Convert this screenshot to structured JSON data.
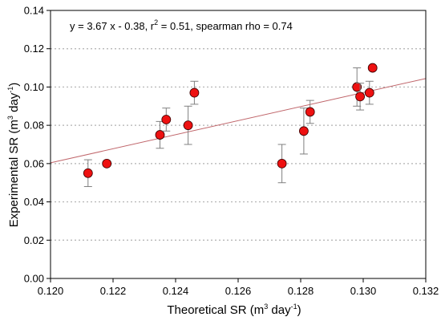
{
  "chart_data": {
    "type": "scatter",
    "annotation": {
      "before_sup": "y = 3.67 x - 0.38, r",
      "sup": "2",
      "after_sup": " = 0.51, spearman rho = 0.74"
    },
    "xlabel": {
      "pre": "Theoretical SR (m",
      "sup1": "3",
      "mid": " day",
      "sup2": "-1",
      "post": ")"
    },
    "ylabel": {
      "pre": "Experimental SR (m",
      "sup1": "3",
      "mid": " day",
      "sup2": "-1",
      "post": ")"
    },
    "xlim": [
      0.12,
      0.132
    ],
    "ylim": [
      0.0,
      0.14
    ],
    "x_ticks": [
      "0.120",
      "0.122",
      "0.124",
      "0.126",
      "0.128",
      "0.130",
      "0.132"
    ],
    "x_tick_values": [
      0.12,
      0.122,
      0.124,
      0.126,
      0.128,
      0.13,
      0.132
    ],
    "y_ticks": [
      "0.00",
      "0.02",
      "0.04",
      "0.06",
      "0.08",
      "0.10",
      "0.12",
      "0.14"
    ],
    "y_tick_values": [
      0.0,
      0.02,
      0.04,
      0.06,
      0.08,
      0.1,
      0.12,
      0.14
    ],
    "grid": "horizontal dotted",
    "regression": {
      "slope": 3.67,
      "intercept": -0.38,
      "color": "#c0666b"
    },
    "marker_color": "#ee1111",
    "errorbar_color": "#808080",
    "points": [
      {
        "x": 0.1212,
        "y": 0.055,
        "err": 0.007
      },
      {
        "x": 0.1218,
        "y": 0.06,
        "err": 0
      },
      {
        "x": 0.1235,
        "y": 0.075,
        "err": 0.007
      },
      {
        "x": 0.1237,
        "y": 0.083,
        "err": 0.006
      },
      {
        "x": 0.1244,
        "y": 0.08,
        "err": 0.01
      },
      {
        "x": 0.1246,
        "y": 0.097,
        "err": 0.006
      },
      {
        "x": 0.1274,
        "y": 0.06,
        "err": 0.01
      },
      {
        "x": 0.1281,
        "y": 0.077,
        "err": 0.012
      },
      {
        "x": 0.1283,
        "y": 0.087,
        "err": 0.006
      },
      {
        "x": 0.1298,
        "y": 0.1,
        "err": 0.01
      },
      {
        "x": 0.1299,
        "y": 0.095,
        "err": 0.007
      },
      {
        "x": 0.1302,
        "y": 0.097,
        "err": 0.006
      },
      {
        "x": 0.1303,
        "y": 0.11,
        "err": 0
      }
    ]
  }
}
